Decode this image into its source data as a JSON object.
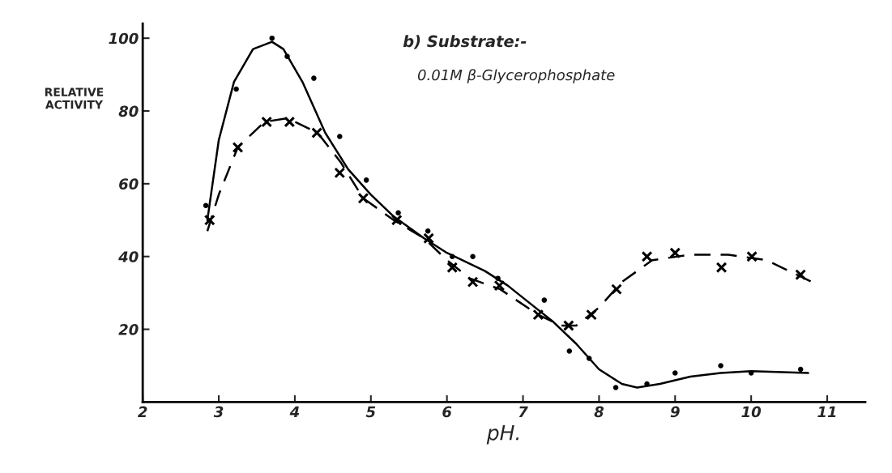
{
  "chart_data": {
    "type": "line",
    "title": "b) Substrate:-",
    "subtitle": "0.01M β-Glycerophosphate",
    "xlabel": "pH.",
    "ylabel": "RELATIVE\nACTIVITY",
    "xlim": [
      2,
      11.5
    ],
    "xticks": [
      2,
      3,
      4,
      5,
      6,
      7,
      8,
      9,
      10,
      11
    ],
    "ylim": [
      0,
      104
    ],
    "yticks": [
      20,
      40,
      60,
      80,
      100
    ],
    "grid": false,
    "legend": false,
    "series": [
      {
        "type": "scatter",
        "marker": "circle",
        "color": "#000000",
        "x": [
          2.83,
          3.23,
          3.7,
          3.9,
          4.25,
          4.59,
          4.94,
          5.36,
          5.75,
          6.07,
          6.34,
          6.67,
          7.28,
          7.61,
          7.87,
          8.22,
          8.63,
          9.0,
          9.6,
          10.0,
          10.65
        ],
        "values": [
          54,
          86,
          100,
          95,
          89,
          73,
          61,
          52,
          47,
          40,
          40,
          34,
          28,
          14,
          12,
          4,
          5,
          8,
          10,
          8,
          9
        ]
      },
      {
        "type": "scatter",
        "marker": "cross",
        "color": "#000000",
        "x": [
          2.88,
          3.25,
          3.63,
          3.93,
          4.29,
          4.59,
          4.9,
          5.34,
          5.76,
          6.07,
          6.34,
          6.69,
          7.2,
          7.6,
          7.9,
          8.23,
          8.63,
          9.0,
          9.61,
          10.01,
          10.65
        ],
        "values": [
          50,
          70,
          77,
          77,
          74,
          63,
          56,
          50,
          45,
          37,
          33,
          32,
          24,
          21,
          24,
          31,
          40,
          41,
          37,
          40,
          35
        ]
      },
      {
        "line_style": "solid",
        "color": "#000000",
        "x": [
          2.85,
          3.0,
          3.2,
          3.45,
          3.7,
          3.85,
          4.1,
          4.4,
          4.7,
          5.0,
          5.3,
          5.7,
          6.0,
          6.5,
          6.8,
          7.1,
          7.4,
          7.7,
          8.0,
          8.3,
          8.5,
          8.8,
          9.2,
          9.6,
          10.0,
          10.75
        ],
        "values": [
          50,
          72,
          88,
          97,
          99,
          97,
          88,
          74,
          64,
          57,
          51,
          45,
          41,
          36,
          32,
          27,
          22,
          16,
          9,
          5,
          4,
          5,
          7,
          8,
          8.5,
          8
        ]
      },
      {
        "line_style": "dashed",
        "color": "#000000",
        "x": [
          2.85,
          3.0,
          3.25,
          3.6,
          3.9,
          4.3,
          4.6,
          4.9,
          5.3,
          5.7,
          6.0,
          6.3,
          6.7,
          7.2,
          7.5,
          7.7,
          8.0,
          8.3,
          8.7,
          9.2,
          9.7,
          10.2,
          10.8
        ],
        "values": [
          47,
          57,
          70,
          77,
          78,
          74,
          66,
          56,
          50,
          45,
          39,
          34,
          31,
          24,
          21,
          21,
          26,
          33,
          39,
          40.5,
          40.5,
          39,
          33
        ]
      }
    ]
  }
}
